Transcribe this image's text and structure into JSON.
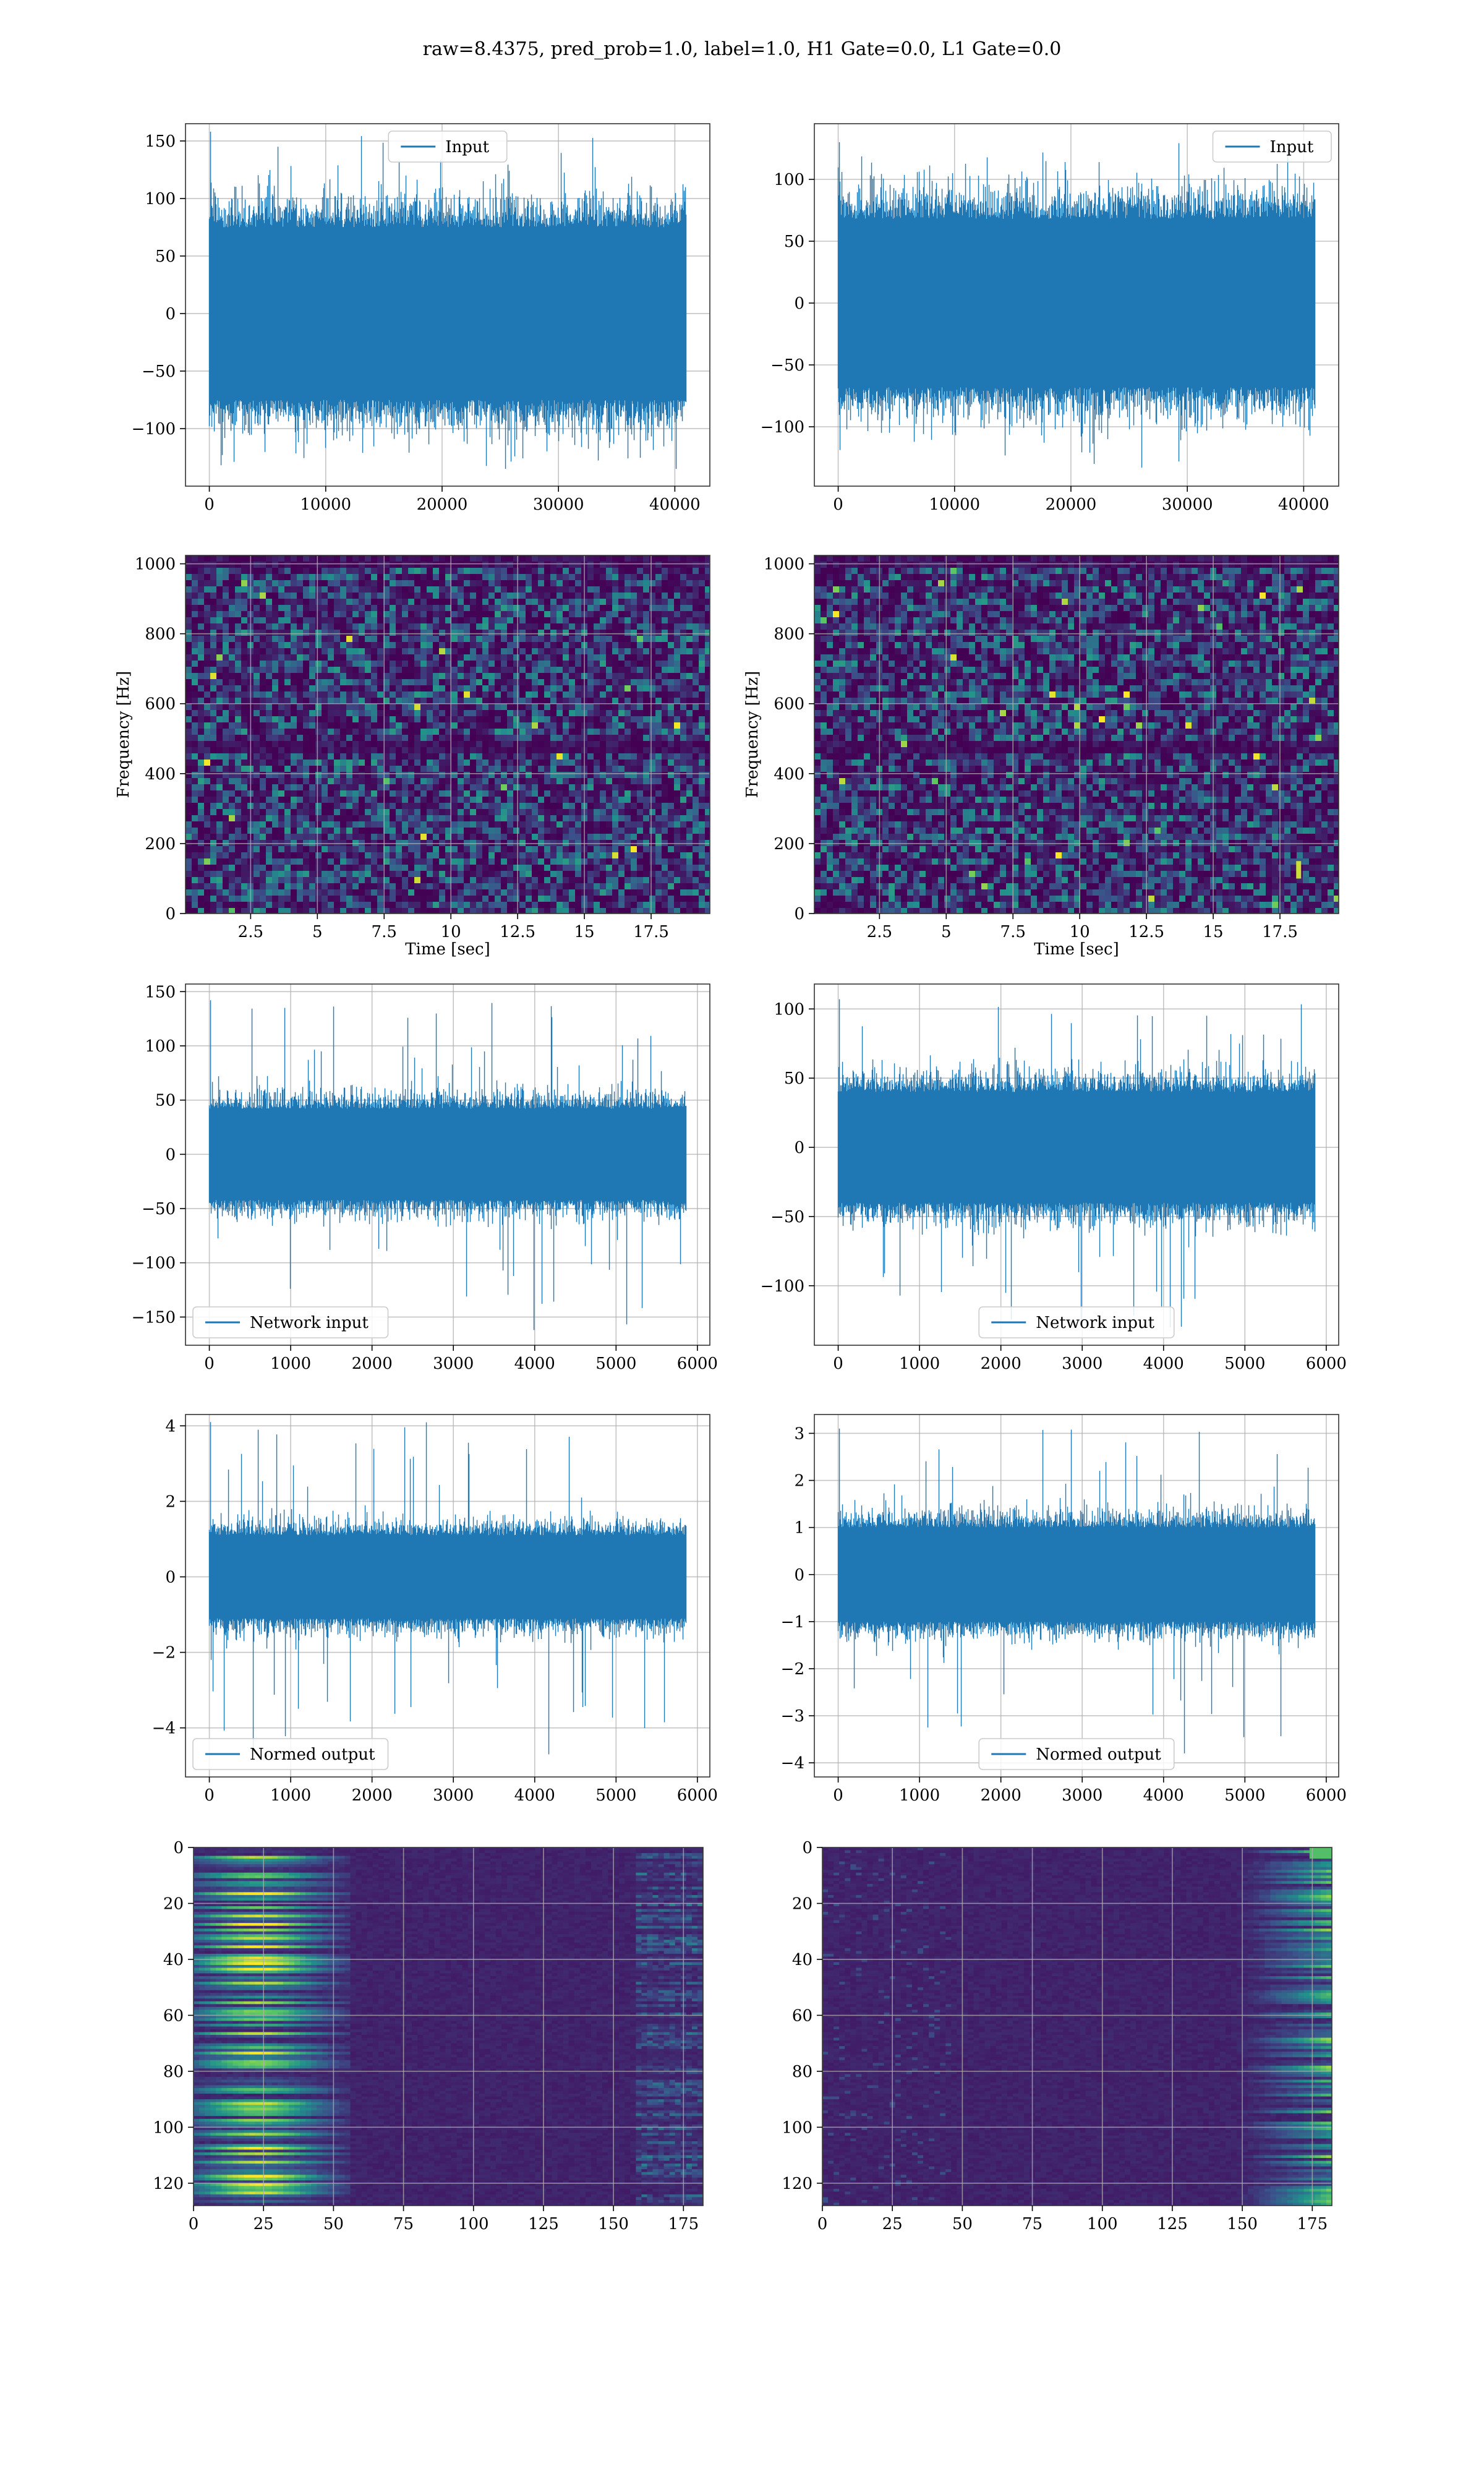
{
  "suptitle": "raw=8.4375, pred_prob=1.0, label=1.0, H1 Gate=0.0, L1 Gate=0.0",
  "colors": {
    "line": "#1f77b4",
    "grid": "#b0b0b0",
    "viridis_low": "#440154",
    "viridis_mid": "#21918c",
    "viridis_high": "#fde725"
  },
  "chart_data": [
    {
      "id": "input-h1",
      "type": "line",
      "series": [
        {
          "name": "Input",
          "envelope": {
            "x_start": 0,
            "x_end": 40960,
            "typical_abs": 75,
            "max": 158,
            "min": -135
          }
        }
      ],
      "xlim": [
        -2048,
        43008
      ],
      "ylim": [
        -150,
        165
      ],
      "xticks": [
        0,
        10000,
        20000,
        30000,
        40000
      ],
      "yticks": [
        -100,
        -50,
        0,
        50,
        100,
        150
      ],
      "xlabel": "",
      "ylabel": "",
      "legend": "upper center",
      "grid": true
    },
    {
      "id": "input-l1",
      "type": "line",
      "series": [
        {
          "name": "Input",
          "envelope": {
            "x_start": 0,
            "x_end": 40960,
            "typical_abs": 68,
            "max": 130,
            "min": -133
          }
        }
      ],
      "xlim": [
        -2048,
        43008
      ],
      "ylim": [
        -148,
        145
      ],
      "xticks": [
        0,
        10000,
        20000,
        30000,
        40000
      ],
      "yticks": [
        -100,
        -50,
        0,
        50,
        100
      ],
      "xlabel": "",
      "ylabel": "",
      "legend": "upper right",
      "grid": true
    },
    {
      "id": "spectrogram-h1",
      "type": "heatmap",
      "xlim": [
        0.06,
        19.7
      ],
      "ylim": [
        0,
        1024
      ],
      "xticks": [
        2.5,
        5.0,
        7.5,
        10.0,
        12.5,
        15.0,
        17.5
      ],
      "yticks": [
        0,
        200,
        400,
        600,
        800,
        1000
      ],
      "xlabel": "Time [sec]",
      "ylabel": "Frequency [Hz]",
      "grid": true
    },
    {
      "id": "spectrogram-l1",
      "type": "heatmap",
      "xlim": [
        0.06,
        19.7
      ],
      "ylim": [
        0,
        1024
      ],
      "xticks": [
        2.5,
        5.0,
        7.5,
        10.0,
        12.5,
        15.0,
        17.5
      ],
      "yticks": [
        0,
        200,
        400,
        600,
        800,
        1000
      ],
      "xlabel": "Time [sec]",
      "ylabel": "Frequency [Hz]",
      "grid": true
    },
    {
      "id": "network-input-h1",
      "type": "line",
      "series": [
        {
          "name": "Network input",
          "envelope": {
            "x_start": 0,
            "x_end": 5860,
            "typical_abs": 42,
            "max": 142,
            "min": -162
          }
        }
      ],
      "xlim": [
        -293,
        6153
      ],
      "ylim": [
        -176,
        157
      ],
      "xticks": [
        0,
        1000,
        2000,
        3000,
        4000,
        5000,
        6000
      ],
      "yticks": [
        -150,
        -100,
        -50,
        0,
        50,
        100,
        150
      ],
      "xlabel": "",
      "ylabel": "",
      "legend": "lower left",
      "grid": true
    },
    {
      "id": "network-input-l1",
      "type": "line",
      "series": [
        {
          "name": "Network input",
          "envelope": {
            "x_start": 0,
            "x_end": 5860,
            "typical_abs": 40,
            "max": 107,
            "min": -130
          }
        }
      ],
      "xlim": [
        -293,
        6153
      ],
      "ylim": [
        -143,
        118
      ],
      "xticks": [
        0,
        1000,
        2000,
        3000,
        4000,
        5000,
        6000
      ],
      "yticks": [
        -100,
        -50,
        0,
        50,
        100
      ],
      "xlabel": "",
      "ylabel": "",
      "legend": "lower center",
      "grid": true
    },
    {
      "id": "normed-output-h1",
      "type": "line",
      "series": [
        {
          "name": "Normed output",
          "envelope": {
            "x_start": 0,
            "x_end": 5860,
            "typical_abs": 1.1,
            "max": 4.1,
            "min": -4.7
          }
        }
      ],
      "xlim": [
        -293,
        6153
      ],
      "ylim": [
        -5.3,
        4.3
      ],
      "xticks": [
        0,
        1000,
        2000,
        3000,
        4000,
        5000,
        6000
      ],
      "yticks": [
        -4,
        -2,
        0,
        2,
        4
      ],
      "xlabel": "",
      "ylabel": "",
      "legend": "lower left",
      "grid": true
    },
    {
      "id": "normed-output-l1",
      "type": "line",
      "series": [
        {
          "name": "Normed output",
          "envelope": {
            "x_start": 0,
            "x_end": 5860,
            "typical_abs": 1.0,
            "max": 3.1,
            "min": -3.8
          }
        }
      ],
      "xlim": [
        -293,
        6153
      ],
      "ylim": [
        -4.3,
        3.4
      ],
      "xticks": [
        0,
        1000,
        2000,
        3000,
        4000,
        5000,
        6000
      ],
      "yticks": [
        -4,
        -3,
        -2,
        -1,
        0,
        1,
        2,
        3
      ],
      "xlabel": "",
      "ylabel": "",
      "legend": "lower center",
      "grid": true
    },
    {
      "id": "feature-map-h1",
      "type": "heatmap",
      "xlim": [
        0,
        182
      ],
      "ylim": [
        128,
        0
      ],
      "xticks": [
        0,
        25,
        50,
        75,
        100,
        125,
        150,
        175
      ],
      "yticks": [
        0,
        20,
        40,
        60,
        80,
        100,
        120
      ],
      "hot_region": "left",
      "xlabel": "",
      "ylabel": "",
      "grid": true
    },
    {
      "id": "feature-map-l1",
      "type": "heatmap",
      "xlim": [
        0,
        182
      ],
      "ylim": [
        128,
        0
      ],
      "xticks": [
        0,
        25,
        50,
        75,
        100,
        125,
        150,
        175
      ],
      "yticks": [
        0,
        20,
        40,
        60,
        80,
        100,
        120
      ],
      "hot_region": "right",
      "xlabel": "",
      "ylabel": "",
      "grid": true
    }
  ]
}
